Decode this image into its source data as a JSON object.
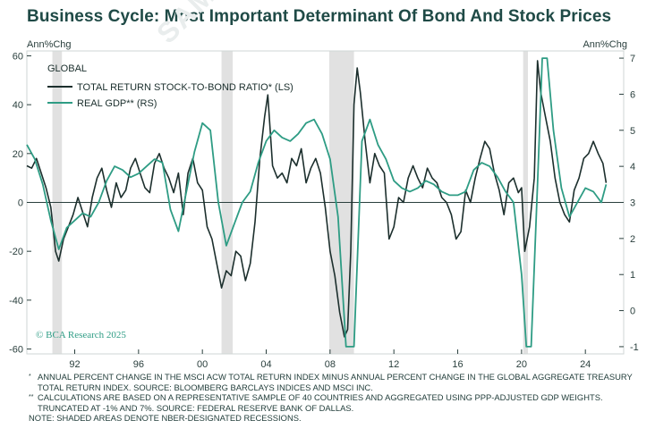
{
  "title": "Business Cycle: Most Important Determinant Of Bond And Stock Prices",
  "watermark": "SAMPLE",
  "left_axis_unit": "Ann%Chg",
  "right_axis_unit": "Ann%Chg",
  "credit": "© BCA Research 2025",
  "footnotes": [
    {
      "mark": "*",
      "text": "ANNUAL PERCENT CHANGE IN THE MSCI ACW TOTAL RETURN INDEX MINUS ANNUAL PERCENT CHANGE IN THE GLOBAL AGGREGATE TREASURY TOTAL RETURN INDEX. SOURCE: BLOOMBERG BARCLAYS INDICES AND MSCI INC."
    },
    {
      "mark": "**",
      "text": "CALCULATIONS ARE BASED ON A REPRESENTATIVE SAMPLE OF 40 COUNTRIES AND AGGREGATED USING PPP-ADJUSTED GDP WEIGHTS. TRUNCATED AT -1% AND 7%. SOURCE: FEDERAL RESERVE BANK OF DALLAS."
    },
    {
      "mark": "",
      "text": "NOTE: SHADED AREAS DENOTE NBER-DESIGNATED RECESSIONS."
    }
  ],
  "colors": {
    "stock_bond": "#1c2f2d",
    "gdp": "#2e9c84",
    "recession": "#e1e1e1",
    "zero_line": "#2a3f3d",
    "frame": "#cfd6d5"
  },
  "chart_data": {
    "type": "line",
    "legend": {
      "title": "GLOBAL",
      "placement": "top-left",
      "entries": [
        "TOTAL RETURN STOCK-TO-BOND RATIO* (LS)",
        "REAL GDP** (RS)"
      ]
    },
    "x_range": [
      1989.0,
      2026.4
    ],
    "x_ticks": [
      1992,
      1996,
      2000,
      2004,
      2008,
      2012,
      2016,
      2020,
      2024
    ],
    "x_tick_labels": [
      "92",
      "96",
      "00",
      "04",
      "08",
      "12",
      "16",
      "20",
      "24"
    ],
    "left_axis": {
      "label": "Ann%Chg",
      "range": [
        -62,
        62
      ],
      "ticks": [
        -60,
        -40,
        -20,
        0,
        20,
        40,
        60
      ]
    },
    "right_axis": {
      "label": "Ann%Chg",
      "range": [
        -1.2,
        7.2
      ],
      "ticks": [
        -1,
        0,
        1,
        2,
        3,
        4,
        5,
        6,
        7
      ]
    },
    "recessions": [
      [
        1990.6,
        1991.2
      ],
      [
        2001.2,
        2001.9
      ],
      [
        2007.95,
        2009.5
      ],
      [
        2020.1,
        2020.4
      ]
    ],
    "series": [
      {
        "name": "TOTAL RETURN STOCK-TO-BOND RATIO* (LS)",
        "axis": "left",
        "x": [
          1989.0,
          1989.3,
          1989.6,
          1989.9,
          1990.2,
          1990.5,
          1990.8,
          1991.0,
          1991.3,
          1991.6,
          1991.9,
          1992.2,
          1992.5,
          1992.8,
          1993.1,
          1993.4,
          1993.7,
          1994.0,
          1994.3,
          1994.6,
          1994.9,
          1995.2,
          1995.5,
          1995.8,
          1996.1,
          1996.4,
          1996.7,
          1997.0,
          1997.3,
          1997.6,
          1997.9,
          1998.2,
          1998.5,
          1998.8,
          1999.1,
          1999.4,
          1999.7,
          2000.0,
          2000.3,
          2000.6,
          2000.9,
          2001.2,
          2001.5,
          2001.8,
          2002.1,
          2002.4,
          2002.7,
          2003.0,
          2003.3,
          2003.6,
          2003.9,
          2004.1,
          2004.4,
          2004.7,
          2005.0,
          2005.3,
          2005.6,
          2005.9,
          2006.2,
          2006.5,
          2006.8,
          2007.1,
          2007.4,
          2007.7,
          2008.0,
          2008.3,
          2008.6,
          2008.9,
          2009.1,
          2009.3,
          2009.5,
          2009.7,
          2009.9,
          2010.2,
          2010.5,
          2010.8,
          2011.1,
          2011.4,
          2011.7,
          2012.0,
          2012.3,
          2012.6,
          2012.9,
          2013.2,
          2013.5,
          2013.8,
          2014.1,
          2014.4,
          2014.7,
          2015.0,
          2015.3,
          2015.6,
          2015.9,
          2016.2,
          2016.5,
          2016.8,
          2017.1,
          2017.4,
          2017.7,
          2018.0,
          2018.3,
          2018.6,
          2018.9,
          2019.2,
          2019.5,
          2019.8,
          2020.0,
          2020.2,
          2020.5,
          2020.8,
          2021.0,
          2021.2,
          2021.5,
          2021.8,
          2022.1,
          2022.4,
          2022.7,
          2023.0,
          2023.3,
          2023.6,
          2023.9,
          2024.2,
          2024.5,
          2024.8,
          2025.1,
          2025.3
        ],
        "y": [
          15,
          14,
          18,
          12,
          6,
          -2,
          -20,
          -24,
          -15,
          -10,
          -5,
          2,
          -4,
          -10,
          2,
          10,
          14,
          5,
          -2,
          8,
          2,
          5,
          14,
          18,
          12,
          6,
          4,
          16,
          20,
          14,
          10,
          4,
          12,
          -5,
          12,
          18,
          8,
          5,
          -10,
          -15,
          -25,
          -35,
          -28,
          -30,
          -20,
          -22,
          -32,
          -25,
          -8,
          18,
          35,
          44,
          15,
          10,
          12,
          8,
          18,
          15,
          22,
          8,
          14,
          18,
          12,
          -2,
          -20,
          -30,
          -45,
          -55,
          -52,
          -20,
          40,
          55,
          45,
          25,
          8,
          20,
          15,
          12,
          -15,
          -10,
          2,
          0,
          10,
          15,
          10,
          6,
          14,
          10,
          8,
          2,
          0,
          -5,
          -15,
          -12,
          5,
          0,
          10,
          18,
          25,
          22,
          12,
          5,
          -5,
          8,
          10,
          4,
          6,
          -20,
          -10,
          10,
          58,
          45,
          35,
          25,
          10,
          0,
          -5,
          -8,
          5,
          10,
          18,
          20,
          25,
          20,
          16,
          8
        ]
      },
      {
        "name": "REAL GDP** (RS)",
        "axis": "right",
        "x": [
          1989.0,
          1989.5,
          1990.0,
          1990.5,
          1991.0,
          1991.5,
          1992.0,
          1992.5,
          1993.0,
          1993.5,
          1994.0,
          1994.5,
          1995.0,
          1995.5,
          1996.0,
          1996.5,
          1997.0,
          1997.5,
          1998.0,
          1998.5,
          1999.0,
          1999.5,
          2000.0,
          2000.5,
          2001.0,
          2001.5,
          2002.0,
          2002.5,
          2003.0,
          2003.5,
          2004.0,
          2004.5,
          2005.0,
          2005.5,
          2006.0,
          2006.5,
          2007.0,
          2007.5,
          2008.0,
          2008.5,
          2009.0,
          2009.5,
          2010.0,
          2010.5,
          2011.0,
          2011.5,
          2012.0,
          2012.5,
          2013.0,
          2013.5,
          2014.0,
          2014.5,
          2015.0,
          2015.5,
          2016.0,
          2016.5,
          2017.0,
          2017.5,
          2018.0,
          2018.5,
          2019.0,
          2019.5,
          2020.0,
          2020.3,
          2020.6,
          2021.0,
          2021.3,
          2021.6,
          2022.0,
          2022.5,
          2023.0,
          2023.5,
          2024.0,
          2024.5,
          2025.0,
          2025.3
        ],
        "y": [
          4.6,
          4.2,
          3.5,
          2.5,
          1.7,
          2.3,
          2.5,
          2.7,
          2.6,
          3.0,
          3.6,
          4.0,
          3.9,
          3.7,
          3.8,
          4.0,
          4.2,
          4.1,
          2.8,
          2.2,
          3.3,
          4.4,
          5.2,
          5.0,
          3.0,
          1.8,
          2.4,
          3.0,
          3.3,
          4.1,
          4.7,
          5.0,
          4.8,
          4.7,
          4.9,
          5.2,
          5.3,
          4.9,
          4.2,
          2.6,
          -1.0,
          -1.0,
          4.7,
          5.3,
          4.6,
          4.2,
          3.6,
          3.4,
          3.3,
          3.4,
          3.6,
          3.5,
          3.3,
          3.2,
          3.2,
          3.3,
          3.9,
          4.1,
          4.0,
          3.7,
          3.3,
          3.0,
          1.0,
          -1.0,
          -1.0,
          3.5,
          7.0,
          7.0,
          5.0,
          3.4,
          2.6,
          3.0,
          3.4,
          3.3,
          3.0,
          3.5
        ]
      }
    ]
  }
}
